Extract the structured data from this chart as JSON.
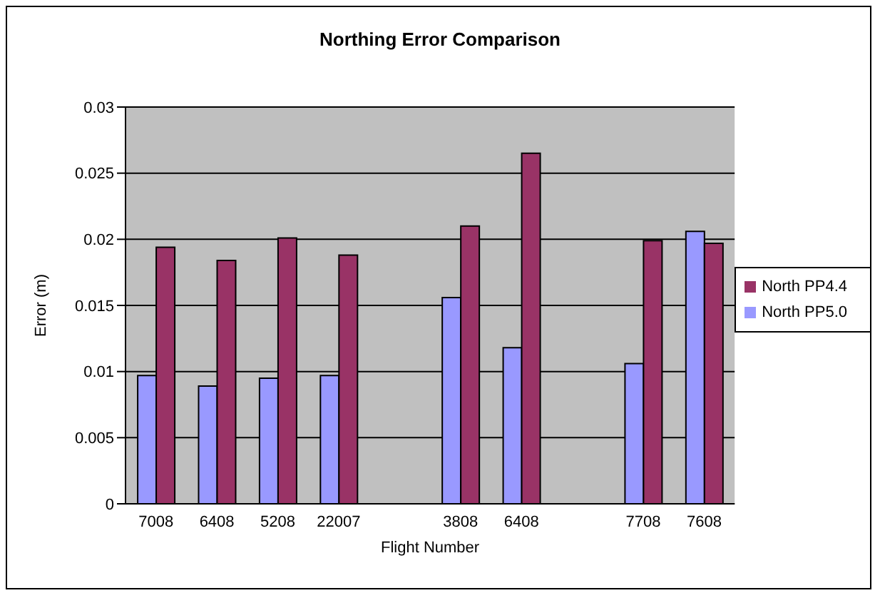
{
  "chart_data": {
    "type": "bar",
    "title": "Northing Error Comparison",
    "xlabel": "Flight Number",
    "ylabel": "Error (m)",
    "categories": [
      "7008",
      "6408",
      "5208",
      "22007",
      null,
      "3808",
      "6408",
      null,
      "7708",
      "7608"
    ],
    "series": [
      {
        "name": "North PP5.0",
        "color": "#9999ff",
        "values": [
          0.0097,
          0.0089,
          0.0095,
          0.0097,
          null,
          0.0156,
          0.0118,
          null,
          0.0106,
          0.0206
        ]
      },
      {
        "name": "North PP4.4",
        "color": "#993366",
        "values": [
          0.0194,
          0.0184,
          0.0201,
          0.0188,
          null,
          0.021,
          0.0265,
          null,
          0.0199,
          0.0197
        ]
      }
    ],
    "ylim": [
      0,
      0.03
    ],
    "yticks": [
      0,
      0.005,
      0.01,
      0.015,
      0.02,
      0.025,
      0.03
    ],
    "grid": "y",
    "legend": "right"
  }
}
